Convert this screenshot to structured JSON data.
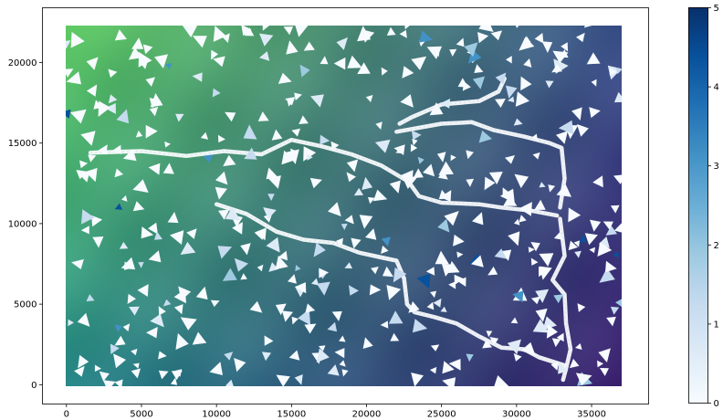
{
  "chart_data": {
    "type": "heatmap",
    "title": "",
    "xlabel": "",
    "ylabel": "",
    "xlim": [
      -1600,
      38800
    ],
    "ylim": [
      -1200,
      23400
    ],
    "data_extent": {
      "x": [
        0,
        37200
      ],
      "y": [
        0,
        23000
      ]
    },
    "x_ticks": [
      0,
      5000,
      10000,
      15000,
      20000,
      25000,
      30000,
      35000
    ],
    "x_tick_labels": [
      "0",
      "5000",
      "10000",
      "15000",
      "20000",
      "25000",
      "30000",
      "35000"
    ],
    "y_ticks": [
      0,
      5000,
      10000,
      15000,
      20000
    ],
    "y_tick_labels": [
      "0",
      "5000",
      "10000",
      "15000",
      "20000"
    ],
    "grid": false,
    "legend": "none",
    "surface": {
      "colormap": "viridis",
      "description": "interpolated elevation-like field, high in upper-left, low in lower-right",
      "corner_colors": {
        "top_left": "#5ec962",
        "top_right": "#3b528b",
        "bottom_left": "#2a8a8b",
        "bottom_right": "#3b1f6e"
      }
    },
    "river_network": {
      "color": "#ffffff",
      "branches": [
        {
          "name": "north",
          "points": [
            [
              1600,
              14400
            ],
            [
              5000,
              14500
            ],
            [
              8000,
              14200
            ],
            [
              10500,
              14500
            ],
            [
              13000,
              14300
            ],
            [
              15000,
              15200
            ],
            [
              17000,
              14800
            ],
            [
              19000,
              14300
            ],
            [
              21000,
              13600
            ],
            [
              22800,
              12600
            ],
            [
              23500,
              11700
            ],
            [
              25000,
              11300
            ],
            [
              27500,
              11200
            ],
            [
              29000,
              11000
            ],
            [
              31000,
              10800
            ],
            [
              32700,
              10500
            ]
          ]
        },
        {
          "name": "upper-east",
          "points": [
            [
              22000,
              15700
            ],
            [
              25000,
              16200
            ],
            [
              27000,
              16300
            ],
            [
              28500,
              15800
            ],
            [
              30500,
              15400
            ],
            [
              32200,
              15000
            ],
            [
              33000,
              14700
            ],
            [
              33200,
              12800
            ],
            [
              32900,
              11000
            ]
          ]
        },
        {
          "name": "upper-loop",
          "points": [
            [
              22200,
              16200
            ],
            [
              23000,
              16600
            ],
            [
              25000,
              17400
            ],
            [
              27500,
              17600
            ],
            [
              28800,
              18200
            ],
            [
              29200,
              19000
            ]
          ]
        },
        {
          "name": "south",
          "points": [
            [
              10000,
              11200
            ],
            [
              12000,
              10600
            ],
            [
              14000,
              9500
            ],
            [
              15800,
              9000
            ],
            [
              17800,
              8800
            ],
            [
              19500,
              8200
            ],
            [
              21000,
              7900
            ],
            [
              22000,
              7700
            ],
            [
              22500,
              6600
            ],
            [
              22700,
              5000
            ],
            [
              23200,
              4500
            ],
            [
              24500,
              4200
            ],
            [
              26000,
              3800
            ],
            [
              27500,
              3000
            ],
            [
              29000,
              2300
            ],
            [
              30500,
              2200
            ],
            [
              31500,
              1700
            ],
            [
              33200,
              1200
            ]
          ]
        },
        {
          "name": "east-trunk",
          "points": [
            [
              32900,
              10300
            ],
            [
              33200,
              8000
            ],
            [
              32400,
              6500
            ],
            [
              33200,
              5600
            ],
            [
              33300,
              3800
            ],
            [
              33600,
              2200
            ],
            [
              33300,
              1000
            ],
            [
              33100,
              300
            ]
          ]
        }
      ]
    },
    "colorbar": {
      "colormap": "Blues",
      "range": [
        0,
        5
      ],
      "ticks": [
        0,
        1,
        2,
        3,
        4,
        5
      ],
      "tick_labels": [
        "0",
        "1",
        "2",
        "3",
        "4",
        "5"
      ],
      "low_color": "#f7fbff",
      "high_color": "#08306b"
    },
    "scatter_marks": {
      "description": "many small triangles drawn in Blues colormap, most valued near 0",
      "count": 430
    }
  }
}
